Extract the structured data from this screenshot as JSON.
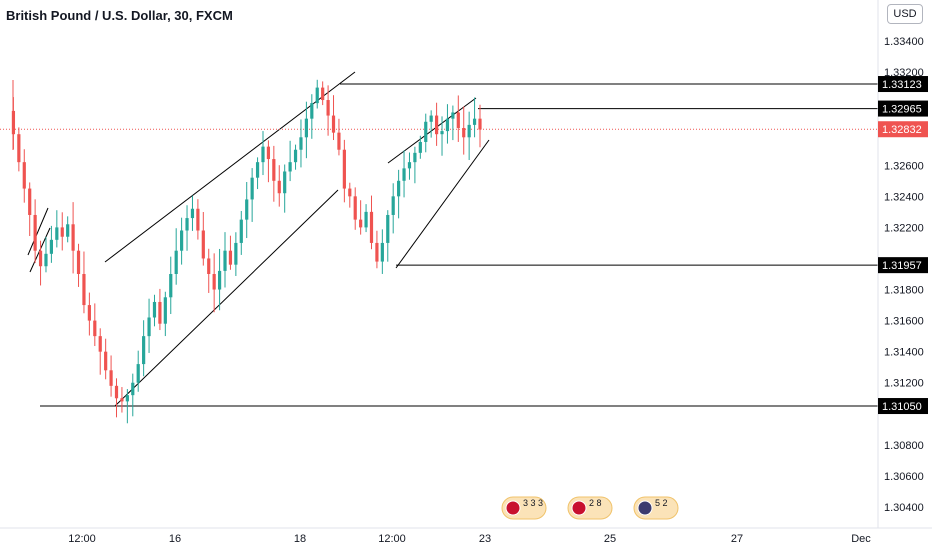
{
  "header": {
    "title": "British Pound / U.S. Dollar, 30, FXCM",
    "currency_button": "USD"
  },
  "colors": {
    "up": "#26a69a",
    "down": "#ef5350",
    "line": "#000000",
    "current_price": "#ef5350",
    "axis_text": "#131722"
  },
  "chart_data": {
    "type": "candlestick",
    "title": "British Pound / U.S. Dollar, 30, FXCM",
    "symbol": "GBPUSD",
    "interval": "30",
    "source": "FXCM",
    "ylim": [
      1.303,
      1.336
    ],
    "y_ticks": [
      "1.33400",
      "1.33200",
      "1.32600",
      "1.32400",
      "1.32200",
      "1.31800",
      "1.31600",
      "1.31400",
      "1.31200",
      "1.30800",
      "1.30600",
      "1.30400"
    ],
    "x_ticks": [
      "12:00",
      "16",
      "18",
      "12:00",
      "23",
      "25",
      "27",
      "Dec"
    ],
    "grid": false,
    "price_labels": [
      {
        "value": "1.33123",
        "style": "line"
      },
      {
        "value": "1.32965",
        "style": "line"
      },
      {
        "value": "1.32832",
        "style": "current"
      },
      {
        "value": "1.31957",
        "style": "line"
      },
      {
        "value": "1.31050",
        "style": "line"
      }
    ],
    "horizontal_levels": [
      {
        "price": 1.33123
      },
      {
        "price": 1.32965
      },
      {
        "price": 1.31957
      },
      {
        "price": 1.3105
      }
    ],
    "current_price": 1.32832,
    "close_path": [
      1.3295,
      1.328,
      1.3262,
      1.3245,
      1.3228,
      1.3205,
      1.3195,
      1.3203,
      1.3212,
      1.322,
      1.3214,
      1.3222,
      1.3205,
      1.319,
      1.317,
      1.316,
      1.315,
      1.314,
      1.3128,
      1.3118,
      1.311,
      1.3108,
      1.3112,
      1.312,
      1.3132,
      1.315,
      1.3162,
      1.3172,
      1.3158,
      1.3175,
      1.319,
      1.3205,
      1.3218,
      1.3226,
      1.3232,
      1.3218,
      1.32,
      1.319,
      1.318,
      1.3192,
      1.3205,
      1.3196,
      1.321,
      1.3225,
      1.3238,
      1.3252,
      1.3262,
      1.3272,
      1.3264,
      1.325,
      1.3242,
      1.3256,
      1.3262,
      1.327,
      1.3278,
      1.329,
      1.33,
      1.331,
      1.3302,
      1.3292,
      1.3281,
      1.327,
      1.3245,
      1.324,
      1.3225,
      1.322,
      1.323,
      1.321,
      1.3198,
      1.321,
      1.3228,
      1.324,
      1.325,
      1.3258,
      1.3262,
      1.3268,
      1.3275,
      1.3288,
      1.3292,
      1.328,
      1.3282,
      1.329,
      1.3294,
      1.3284,
      1.3278,
      1.3286,
      1.329,
      1.3283
    ],
    "event_badges": [
      {
        "counts": [
          "3",
          "3",
          "3"
        ]
      },
      {
        "counts": [
          "2",
          "8"
        ]
      },
      {
        "counts": [
          "5",
          "2"
        ]
      }
    ]
  }
}
